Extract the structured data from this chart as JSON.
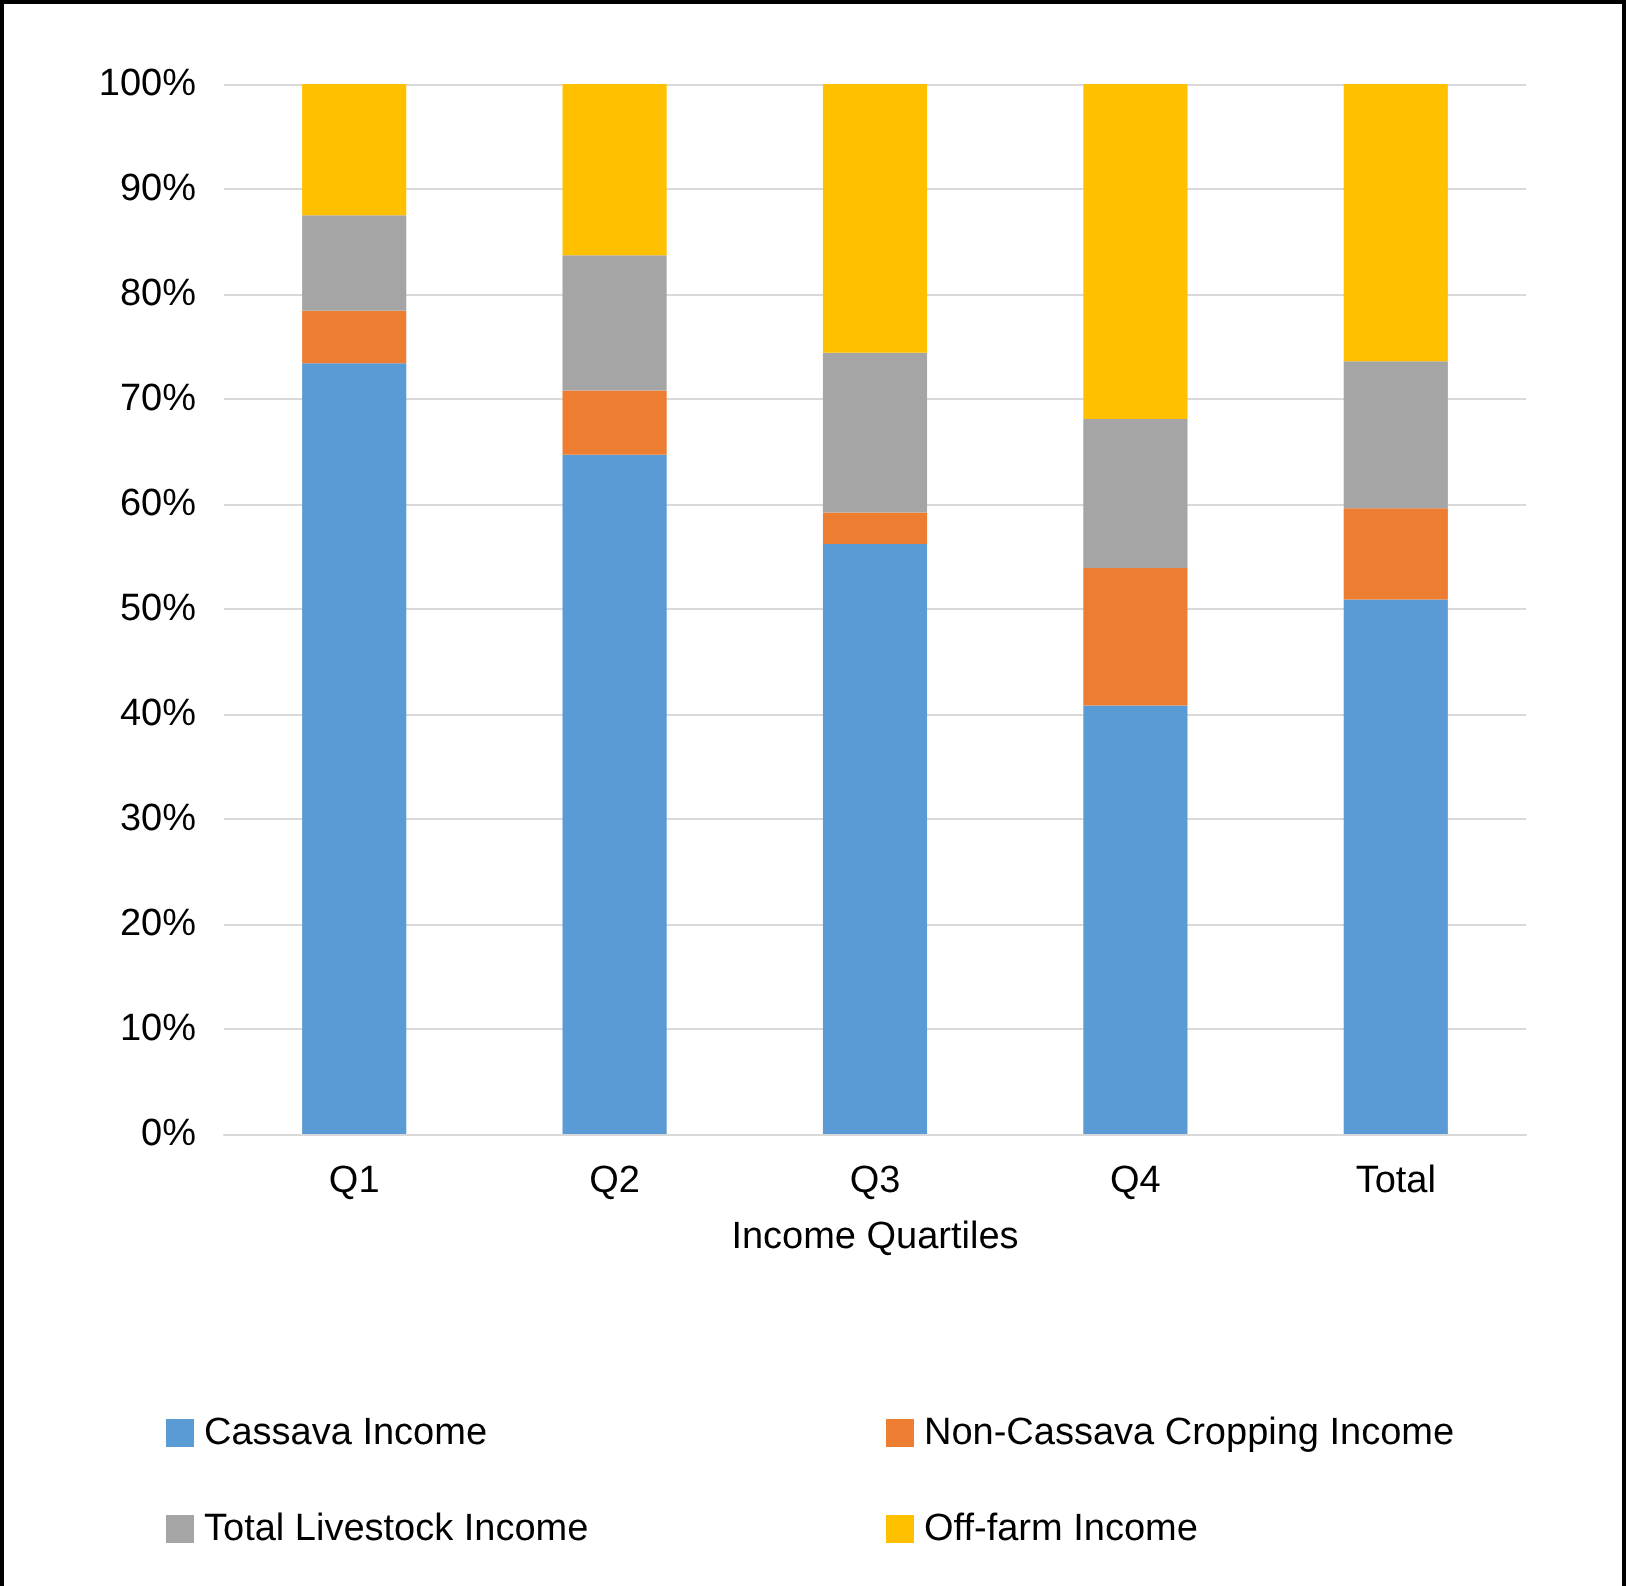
{
  "chart_data": {
    "type": "bar",
    "stacked": true,
    "xlabel": "Income Quartiles",
    "categories": [
      "Q1",
      "Q2",
      "Q3",
      "Q4",
      "Total"
    ],
    "series": [
      {
        "name": "Cassava Income",
        "color": "#5b9bd5",
        "values": [
          73.4,
          64.7,
          56.2,
          40.8,
          50.9
        ]
      },
      {
        "name": "Non-Cassava Cropping Income",
        "color": "#ed7d31",
        "values": [
          5.0,
          6.1,
          3.0,
          13.1,
          8.7
        ]
      },
      {
        "name": "Total Livestock Income",
        "color": "#a5a5a5",
        "values": [
          9.1,
          12.9,
          15.2,
          14.2,
          14.0
        ]
      },
      {
        "name": "Off-farm Income",
        "color": "#ffc000",
        "values": [
          12.5,
          16.3,
          25.6,
          31.9,
          26.4
        ]
      }
    ],
    "ylim": [
      0,
      100
    ],
    "yticks": [
      {
        "value": 0,
        "label": "0%"
      },
      {
        "value": 10,
        "label": "10%"
      },
      {
        "value": 20,
        "label": "20%"
      },
      {
        "value": 30,
        "label": "30%"
      },
      {
        "value": 40,
        "label": "40%"
      },
      {
        "value": 50,
        "label": "50%"
      },
      {
        "value": 60,
        "label": "60%"
      },
      {
        "value": 70,
        "label": "70%"
      },
      {
        "value": 80,
        "label": "80%"
      },
      {
        "value": 90,
        "label": "90%"
      },
      {
        "value": 100,
        "label": "100%"
      }
    ],
    "grid": "y",
    "legend": "bottom"
  }
}
